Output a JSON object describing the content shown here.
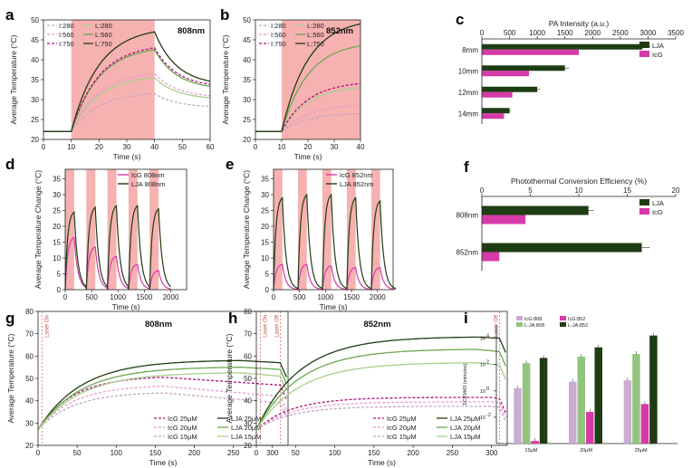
{
  "panel_labels": [
    "a",
    "b",
    "c",
    "d",
    "e",
    "f",
    "g",
    "h",
    "i"
  ],
  "colors": {
    "laser_band": "#f4a3a3",
    "lja_dark": "#1f3d14",
    "lja_mid": "#6aa84f",
    "lja_light": "#a8d08d",
    "icg_magenta": "#d63aa8",
    "icg_pink": "#e79bd0",
    "icg_light": "#c4a5c2",
    "i_purple": "#c8aed0",
    "i_lightgreen": "#93c47d"
  },
  "chart_data": [
    {
      "id": "a",
      "type": "line",
      "wavelength": "808nm",
      "xlabel": "Time (s)",
      "ylabel": "Average Temperature (°C)",
      "xlim": [
        0,
        60
      ],
      "ylim": [
        20,
        50
      ],
      "xticks": [
        "0",
        "10",
        "20",
        "30",
        "40",
        "50",
        "60"
      ],
      "yticks": [
        "20",
        "25",
        "30",
        "35",
        "40",
        "45",
        "50"
      ],
      "laser_on": [
        10,
        40
      ],
      "series": [
        {
          "name": "I:280",
          "dash": true,
          "color": "#c4a5c2",
          "base": 22,
          "peak": 31.5,
          "end": 28.0
        },
        {
          "name": "L:280",
          "dash": false,
          "color": "#a8d08d",
          "base": 22,
          "peak": 35.5,
          "end": 30.0
        },
        {
          "name": "I:560",
          "dash": true,
          "color": "#e79bd0",
          "base": 22,
          "peak": 36.5,
          "end": 30.5
        },
        {
          "name": "L:560",
          "dash": false,
          "color": "#6aa84f",
          "base": 22,
          "peak": 42.5,
          "end": 32.5
        },
        {
          "name": "I:750",
          "dash": true,
          "color": "#b0107a",
          "base": 22,
          "peak": 43.0,
          "end": 33.0
        },
        {
          "name": "L:750",
          "dash": false,
          "color": "#1f3d14",
          "base": 22,
          "peak": 47.0,
          "end": 33.5
        }
      ]
    },
    {
      "id": "b",
      "type": "line",
      "wavelength": "852nm",
      "xlabel": "Time (s)",
      "ylabel": "Average Temperature (°C)",
      "xlim": [
        0,
        40
      ],
      "ylim": [
        20,
        50
      ],
      "xticks": [
        "0",
        "10",
        "20",
        "30",
        "40"
      ],
      "yticks": [
        "20",
        "25",
        "30",
        "35",
        "40",
        "45",
        "50"
      ],
      "laser_on": [
        10,
        40
      ],
      "series": [
        {
          "name": "I:280",
          "dash": true,
          "color": "#c4a5c2",
          "base": 22,
          "peak": 26.5,
          "end": 24.5
        },
        {
          "name": "L:280",
          "dash": false,
          "color": "#a8d08d",
          "base": 22,
          "peak": 33.0,
          "end": 28.0
        },
        {
          "name": "I:560",
          "dash": true,
          "color": "#e79bd0",
          "base": 22,
          "peak": 28.5,
          "end": 25.5
        },
        {
          "name": "L:560",
          "dash": false,
          "color": "#6aa84f",
          "base": 22,
          "peak": 43.5,
          "end": 31.0
        },
        {
          "name": "I:750",
          "dash": true,
          "color": "#b0107a",
          "base": 22,
          "peak": 34.0,
          "end": 27.5
        },
        {
          "name": "L:750",
          "dash": false,
          "color": "#1f3d14",
          "base": 22,
          "peak": 49.0,
          "end": 33.5
        }
      ]
    },
    {
      "id": "c",
      "type": "bar",
      "orientation": "horizontal",
      "title": "PA Intensity (a.u.)",
      "categories": [
        "8mm",
        "10mm",
        "12mm",
        "14mm"
      ],
      "xlim": [
        0,
        3500
      ],
      "xticks": [
        "0",
        "500",
        "1000",
        "1500",
        "2000",
        "2500",
        "3000",
        "3500"
      ],
      "series": [
        {
          "name": "LJA",
          "color": "#1f3d14",
          "values": [
            2900,
            1500,
            1000,
            500
          ]
        },
        {
          "name": "IcG",
          "color": "#d63aa8",
          "values": [
            1750,
            850,
            550,
            400
          ]
        }
      ]
    },
    {
      "id": "d",
      "type": "line",
      "wavelength": "808nm",
      "xlabel": "Time (s)",
      "ylabel": "Average Temperature Change (°C)",
      "xlim": [
        0,
        2300
      ],
      "ylim": [
        0,
        38
      ],
      "xticks": [
        "0",
        "500",
        "1000",
        "1500",
        "2000"
      ],
      "yticks": [
        "0",
        "5",
        "10",
        "15",
        "20",
        "25",
        "30",
        "35"
      ],
      "cycle_starts": [
        0,
        400,
        800,
        1200,
        1600
      ],
      "on_duration": 170,
      "cycle_duration": 400,
      "series": [
        {
          "name": "IcG 808nm",
          "color": "#d63aa8",
          "peaks": [
            16.5,
            13.5,
            10.5,
            8.0,
            6.0
          ]
        },
        {
          "name": "LJA 808nm",
          "color": "#1f3d14",
          "peaks": [
            24.5,
            26.0,
            26.5,
            26.5,
            25.5
          ]
        }
      ]
    },
    {
      "id": "e",
      "type": "line",
      "wavelength": "852nm",
      "xlabel": "Time (s)",
      "ylabel": "Average Temperature Change (°C)",
      "xlim": [
        0,
        2300
      ],
      "ylim": [
        0,
        38
      ],
      "xticks": [
        "0",
        "500",
        "1000",
        "1500",
        "2000"
      ],
      "yticks": [
        "0",
        "5",
        "10",
        "15",
        "20",
        "25",
        "30",
        "35"
      ],
      "cycle_starts": [
        0,
        470,
        940,
        1410,
        1880
      ],
      "on_duration": 170,
      "cycle_duration": 470,
      "series": [
        {
          "name": "IcG 852nm",
          "color": "#d63aa8",
          "peaks": [
            8.0,
            8.0,
            7.5,
            7.0,
            7.0
          ]
        },
        {
          "name": "LJA 852nm",
          "color": "#1f3d14",
          "peaks": [
            29.0,
            30.0,
            30.0,
            29.0,
            28.0
          ]
        }
      ]
    },
    {
      "id": "f",
      "type": "bar",
      "orientation": "horizontal",
      "title": "Photothermal Conversion Efficiency (%)",
      "categories": [
        "808nm",
        "852nm"
      ],
      "xlim": [
        0,
        20
      ],
      "xticks": [
        "0",
        "5",
        "10",
        "15",
        "20"
      ],
      "series": [
        {
          "name": "LJA",
          "color": "#1f3d14",
          "values": [
            11.0,
            16.5
          ]
        },
        {
          "name": "IcG",
          "color": "#d63aa8",
          "values": [
            4.5,
            1.8
          ]
        }
      ]
    },
    {
      "id": "g",
      "type": "line",
      "wavelength": "808nm",
      "xlabel": "Time (s)",
      "ylabel": "Average Temperature (°C)",
      "xlim": [
        0,
        320
      ],
      "ylim": [
        20,
        80
      ],
      "xticks": [
        "0",
        "50",
        "100",
        "150",
        "200",
        "250",
        "300"
      ],
      "yticks": [
        "20",
        "30",
        "40",
        "50",
        "60",
        "70",
        "80"
      ],
      "laser_on_label": "Laser On",
      "laser_off_label": "Laser Off",
      "series": [
        {
          "name": "IcG 25μM",
          "dash": true,
          "color": "#b0107a",
          "max": 50.5,
          "tpeak": 160,
          "end": 47
        },
        {
          "name": "IcG 20μM",
          "dash": true,
          "color": "#e79bd0",
          "max": 46.5,
          "tpeak": 160,
          "end": 42
        },
        {
          "name": "IcG 15μM",
          "dash": true,
          "color": "#c4a5c2",
          "max": 43.5,
          "tpeak": 160,
          "end": 39
        },
        {
          "name": "LJA 25μM",
          "dash": false,
          "color": "#1f3d14",
          "max": 58.0,
          "tpeak": 260,
          "end": 57
        },
        {
          "name": "LJA 20μM",
          "dash": false,
          "color": "#6aa84f",
          "max": 55.0,
          "tpeak": 260,
          "end": 54
        },
        {
          "name": "LJA 15μM",
          "dash": false,
          "color": "#a8d08d",
          "max": 52.5,
          "tpeak": 260,
          "end": 51
        }
      ]
    },
    {
      "id": "h",
      "type": "line",
      "wavelength": "852nm",
      "xlabel": "Time (s)",
      "ylabel": "Average Temperature (°C)",
      "xlim": [
        0,
        320
      ],
      "ylim": [
        20,
        80
      ],
      "xticks": [
        "0",
        "50",
        "100",
        "150",
        "200",
        "250",
        "300"
      ],
      "yticks": [
        "20",
        "30",
        "40",
        "50",
        "60",
        "70",
        "80"
      ],
      "laser_on_label": "Laser On",
      "laser_off_label": "Laser Off",
      "series": [
        {
          "name": "IcG 25μM",
          "dash": true,
          "color": "#b0107a",
          "max": 41.5,
          "tpeak": 300,
          "end": 41
        },
        {
          "name": "IcG 20μM",
          "dash": true,
          "color": "#e79bd0",
          "max": 39.5,
          "tpeak": 300,
          "end": 39
        },
        {
          "name": "IcG 15μM",
          "dash": true,
          "color": "#c4a5c2",
          "max": 37.5,
          "tpeak": 300,
          "end": 37
        },
        {
          "name": "LJA 25μM",
          "dash": false,
          "color": "#1f3d14",
          "max": 68.5,
          "tpeak": 280,
          "end": 68
        },
        {
          "name": "LJA 20μM",
          "dash": false,
          "color": "#6aa84f",
          "max": 63.0,
          "tpeak": 280,
          "end": 62
        },
        {
          "name": "LJA 15μM",
          "dash": false,
          "color": "#a8d08d",
          "max": 57.0,
          "tpeak": 280,
          "end": 56
        }
      ]
    },
    {
      "id": "i",
      "type": "bar",
      "yscale": "log",
      "ylabel": "ΣCEM43 (minutes)",
      "categories": [
        "15μM",
        "20μM",
        "25μM"
      ],
      "ytick_exponents": [
        -2,
        0,
        2,
        4
      ],
      "ylim_log10": [
        -4,
        5
      ],
      "series": [
        {
          "name": "IcG:808",
          "color": "#c8aed0",
          "log10_values": [
            0.2,
            0.7,
            0.8
          ]
        },
        {
          "name": "L-JA:808",
          "color": "#93c47d",
          "log10_values": [
            2.1,
            2.6,
            2.8
          ]
        },
        {
          "name": "IcG:852",
          "color": "#d63aa8",
          "log10_values": [
            -3.8,
            -1.6,
            -1.0
          ]
        },
        {
          "name": "L-JA:852",
          "color": "#1f3d14",
          "log10_values": [
            2.5,
            3.3,
            4.2
          ]
        }
      ]
    }
  ]
}
